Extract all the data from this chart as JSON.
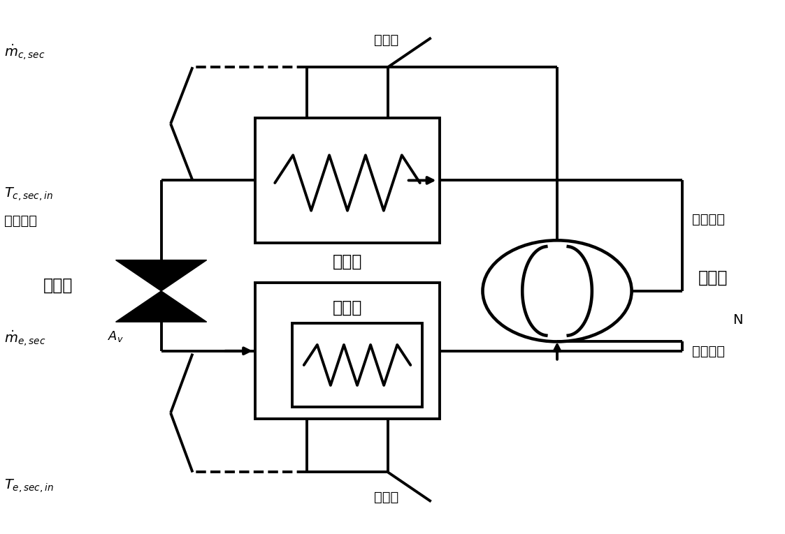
{
  "bg_color": "#ffffff",
  "lc": "#000000",
  "lw": 2.8,
  "lw_thick": 3.0,
  "text_condenser": "冷凝回",
  "text_evaporator": "蒸发器",
  "text_compressor": "压缩机",
  "text_valve": "节流阀",
  "text_N": "N",
  "text_high_liquid": "高压液体",
  "text_high_steam": "高压蒸气",
  "text_low_steam": "低压蒸气",
  "text_sec_top": "二次流",
  "text_sec_bot": "二次流",
  "text_m_c": "$\\dot{m}_{c,sec}$",
  "text_T_c": "$T_{c,sec,in}$",
  "text_m_e": "$\\dot{m}_{e,sec}$",
  "text_T_e": "$T_{e,sec,in}$",
  "fig_w": 11.23,
  "fig_h": 7.65,
  "dpi": 100
}
